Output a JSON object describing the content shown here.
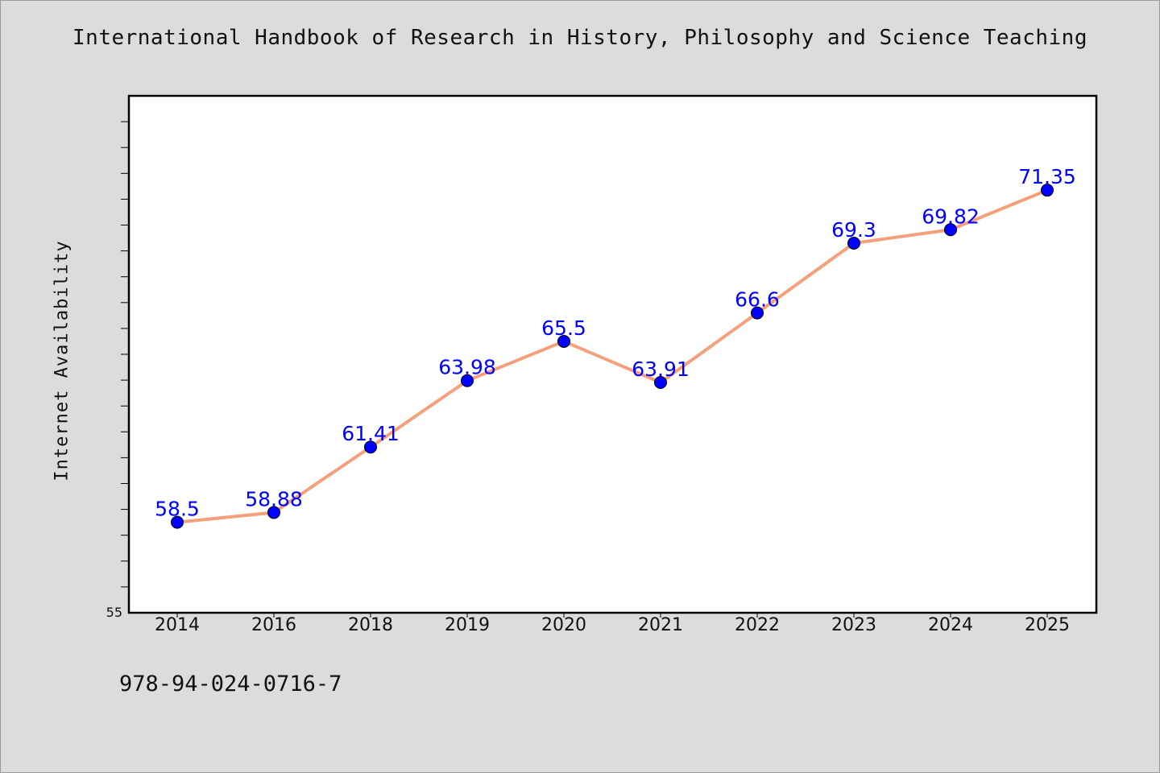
{
  "header": {
    "title": "International Handbook of Research in History, Philosophy and Science Teaching"
  },
  "footer": {
    "code": "978-94-024-0716-7"
  },
  "chart_data": {
    "type": "line",
    "title": "International Handbook of Research in History, Philosophy and Science Teaching",
    "xlabel": "",
    "ylabel": "Internet Availability",
    "categories": [
      "2014",
      "2016",
      "2018",
      "2019",
      "2020",
      "2021",
      "2022",
      "2023",
      "2024",
      "2025"
    ],
    "series": [
      {
        "values": [
          58.5,
          58.88,
          61.41,
          63.98,
          65.5,
          63.91,
          66.6,
          69.3,
          69.82,
          71.35
        ]
      }
    ],
    "data_labels": [
      "58.5",
      "58.88",
      "61.41",
      "63.98",
      "65.5",
      "63.91",
      "66.6",
      "69.3",
      "69.82",
      "71.35"
    ],
    "ylim": [
      55,
      75
    ],
    "y_tick_labels": [
      "55"
    ],
    "grid": false,
    "legend": "none",
    "colors": {
      "line": "#f4a07c",
      "marker": "#0000ff",
      "label": "#0000ff",
      "background": "#dcdcdc",
      "plot_background": "#ffffff"
    }
  }
}
